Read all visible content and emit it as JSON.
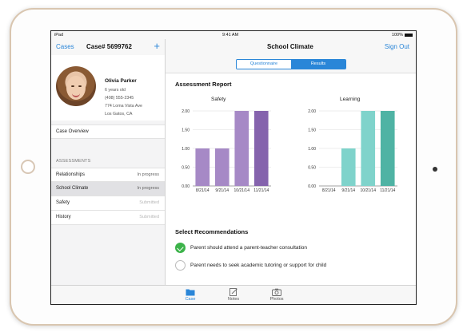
{
  "status_bar": {
    "carrier": "iPad",
    "time": "9:41 AM",
    "battery": "100%"
  },
  "left_nav": {
    "back_label": "Cases",
    "title": "Case# 5699762",
    "add_label": "+"
  },
  "patient": {
    "name": "Olivia Parker",
    "age": "6 years old",
    "phone": "(408) 555-2345",
    "address": "774 Loma Vista Ave",
    "city": "Los Gatos, CA"
  },
  "case_overview_label": "Case Overview",
  "assessments_header": "ASSESSMENTS",
  "assessments": [
    {
      "label": "Relationships",
      "status": "In progress",
      "muted": false,
      "selected": false
    },
    {
      "label": "School Climate",
      "status": "In progress",
      "muted": false,
      "selected": true
    },
    {
      "label": "Safety",
      "status": "Submitted",
      "muted": true,
      "selected": false
    },
    {
      "label": "History",
      "status": "Submitted",
      "muted": true,
      "selected": false
    }
  ],
  "right_nav": {
    "title": "School Climate",
    "signout_label": "Sign Out"
  },
  "segments": {
    "questionnaire": "Questionnaire",
    "results": "Results",
    "selected": "results"
  },
  "report_title": "Assessment Report",
  "chart_data": [
    {
      "type": "bar",
      "title": "Safety",
      "categories": [
        "8/21/14",
        "9/21/14",
        "10/21/14",
        "11/21/14"
      ],
      "values": [
        1.0,
        1.0,
        2.0,
        2.0
      ],
      "ylim": [
        0,
        2
      ],
      "yticks": [
        "0.00",
        "0.50",
        "1.00",
        "1.50",
        "2.00"
      ],
      "color": "#a689c6",
      "last_color": "#8563ad",
      "grid": true
    },
    {
      "type": "bar",
      "title": "Learning",
      "categories": [
        "8/21/14",
        "9/21/14",
        "10/21/14",
        "11/21/14"
      ],
      "values": [
        0,
        1.0,
        2.0,
        2.0
      ],
      "ylim": [
        0,
        2
      ],
      "yticks": [
        "0.00",
        "0.50",
        "1.00",
        "1.50",
        "2.00"
      ],
      "color": "#7fd3cb",
      "last_color": "#4fb3a4",
      "grid": true
    }
  ],
  "recommendations_title": "Select Recommendations",
  "recommendations": [
    {
      "text": "Parent should attend a parent-teacher consultation",
      "checked": true
    },
    {
      "text": "Parent needs to seek academic tutoring or support for child",
      "checked": false
    }
  ],
  "tabs": [
    {
      "label": "Case",
      "icon": "folder-icon",
      "active": true
    },
    {
      "label": "Notes",
      "icon": "notes-icon",
      "active": false
    },
    {
      "label": "Photos",
      "icon": "camera-icon",
      "active": false
    }
  ],
  "colors": {
    "accent": "#2a86d8",
    "check": "#3cb34a"
  }
}
